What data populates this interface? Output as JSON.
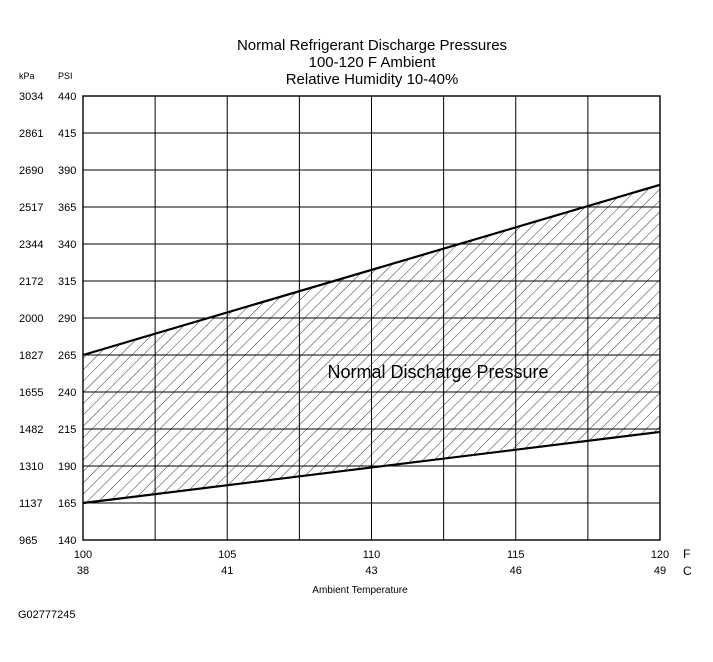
{
  "chart_data": {
    "type": "area",
    "title": "Normal  Refrigerant  Discharge  Pressures",
    "subtitle_lines": [
      "100-120 F Ambient",
      "Relative Humidity 10-40%"
    ],
    "xlabel": "Ambient Temperature",
    "x_units": [
      "F",
      "C"
    ],
    "y_units": [
      "kPa",
      "PSI"
    ],
    "xlim": [
      100,
      120
    ],
    "ylim": [
      140,
      440
    ],
    "x_ticks_f": [
      100,
      105,
      110,
      115,
      120
    ],
    "x_ticks_c": [
      38,
      41,
      43,
      46,
      49
    ],
    "x_vertical_gridlines_f": [
      100,
      102.5,
      105,
      107.5,
      110,
      112.5,
      115,
      117.5,
      120
    ],
    "y_ticks_psi": [
      140,
      165,
      190,
      215,
      240,
      265,
      290,
      315,
      340,
      365,
      390,
      415,
      440
    ],
    "y_ticks_kpa": [
      965,
      1137,
      1310,
      1482,
      1655,
      1827,
      2000,
      2172,
      2344,
      2517,
      2690,
      2861,
      3034
    ],
    "grid": true,
    "band_label": "Normal Discharge Pressure",
    "series": [
      {
        "x": [
          100,
          120
        ],
        "values": [
          265,
          380
        ]
      },
      {
        "x": [
          100,
          120
        ],
        "values": [
          165,
          213
        ]
      }
    ],
    "band_fill": "diagonal-hatch"
  },
  "figure_id": "G02777245",
  "colors": {
    "line": "#000000",
    "grid": "#000000",
    "hatch": "#000000",
    "background": "#ffffff"
  }
}
